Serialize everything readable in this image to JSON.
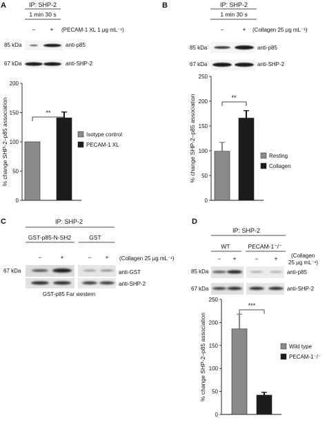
{
  "panels": {
    "A": {
      "letter": "A",
      "ip": "IP: SHP-2",
      "time": "1 min 30 s",
      "minus": "−",
      "plus": "+",
      "treatment": "(PECAM-1 XL 1 μg mL⁻¹)",
      "blots": [
        {
          "mw": "85 kDa",
          "label": "anti-p85"
        },
        {
          "mw": "67 kDa",
          "label": "anti-SHP-2"
        }
      ],
      "sig": "**"
    },
    "B": {
      "letter": "B",
      "ip": "IP: SHP-2",
      "time": "1 min 30 s",
      "minus": "−",
      "plus": "+",
      "treatment": "(Collagen 25 μg mL⁻¹)",
      "blots": [
        {
          "mw": "85 kDa",
          "label": "anti-p85"
        },
        {
          "mw": "67 kDa",
          "label": "anti-SHP-2"
        }
      ],
      "sig": "**"
    },
    "C": {
      "letter": "C",
      "ip": "IP: SHP-2",
      "group1": "GST-p85-N-SH2",
      "group2": "GST",
      "minus": "−",
      "plus": "+",
      "treatment": "(Collagen 25 μg mL⁻¹)",
      "blots": [
        {
          "mw": "67 kDa",
          "label": "anti-GST"
        },
        {
          "mw": "",
          "label": "anti-SHP-2"
        }
      ],
      "caption": "GST-p85 Far western"
    },
    "D": {
      "letter": "D",
      "ip": "IP: SHP-2",
      "group1": "WT",
      "group2": "PECAM-1⁻/⁻",
      "minus": "−",
      "plus": "+",
      "treatment_line1": "(Collagen",
      "treatment_line2": "25 μg mL⁻¹)",
      "blots": [
        {
          "mw": "85 kDa",
          "label": "anti-p85"
        },
        {
          "mw": "67 kDa",
          "label": "anti-SHP-2"
        }
      ],
      "sig": "***"
    }
  },
  "chart_data": [
    {
      "panel": "A",
      "type": "bar",
      "categories": [
        "Isotype control",
        "PECAM-1 XL"
      ],
      "values": [
        100,
        141
      ],
      "errors": [
        0,
        10
      ],
      "colors": [
        "#8a8a8a",
        "#1c1c1c"
      ],
      "ylabel": "% change SHP-2–p85 association",
      "ylim": [
        0,
        200
      ],
      "yticks": [
        "0",
        "50",
        "100",
        "150",
        "200"
      ],
      "legend": [
        "Isotype control",
        "PECAM-1 XL"
      ],
      "legend_position": "right"
    },
    {
      "panel": "B",
      "type": "bar",
      "categories": [
        "Resting",
        "Collagen"
      ],
      "values": [
        99,
        166
      ],
      "errors": [
        18,
        15
      ],
      "colors": [
        "#8a8a8a",
        "#1c1c1c"
      ],
      "ylabel": "% change SHP-2–p85 association",
      "ylim": [
        0,
        250
      ],
      "yticks": [
        "0",
        "50",
        "100",
        "150",
        "200",
        "250"
      ],
      "legend": [
        "Resting",
        "Collagen"
      ],
      "legend_position": "right"
    },
    {
      "panel": "D",
      "type": "bar",
      "categories": [
        "Wild type",
        "PECAM-1⁻/⁻"
      ],
      "values": [
        186,
        42
      ],
      "errors": [
        32,
        6
      ],
      "colors": [
        "#8a8a8a",
        "#1c1c1c"
      ],
      "ylabel": "% change SHP-2–p85 association",
      "ylim": [
        0,
        250
      ],
      "yticks": [
        "0",
        "50",
        "100",
        "150",
        "200",
        "250"
      ],
      "legend": [
        "Wild type",
        "PECAM-1⁻/⁻"
      ],
      "legend_position": "right"
    }
  ]
}
